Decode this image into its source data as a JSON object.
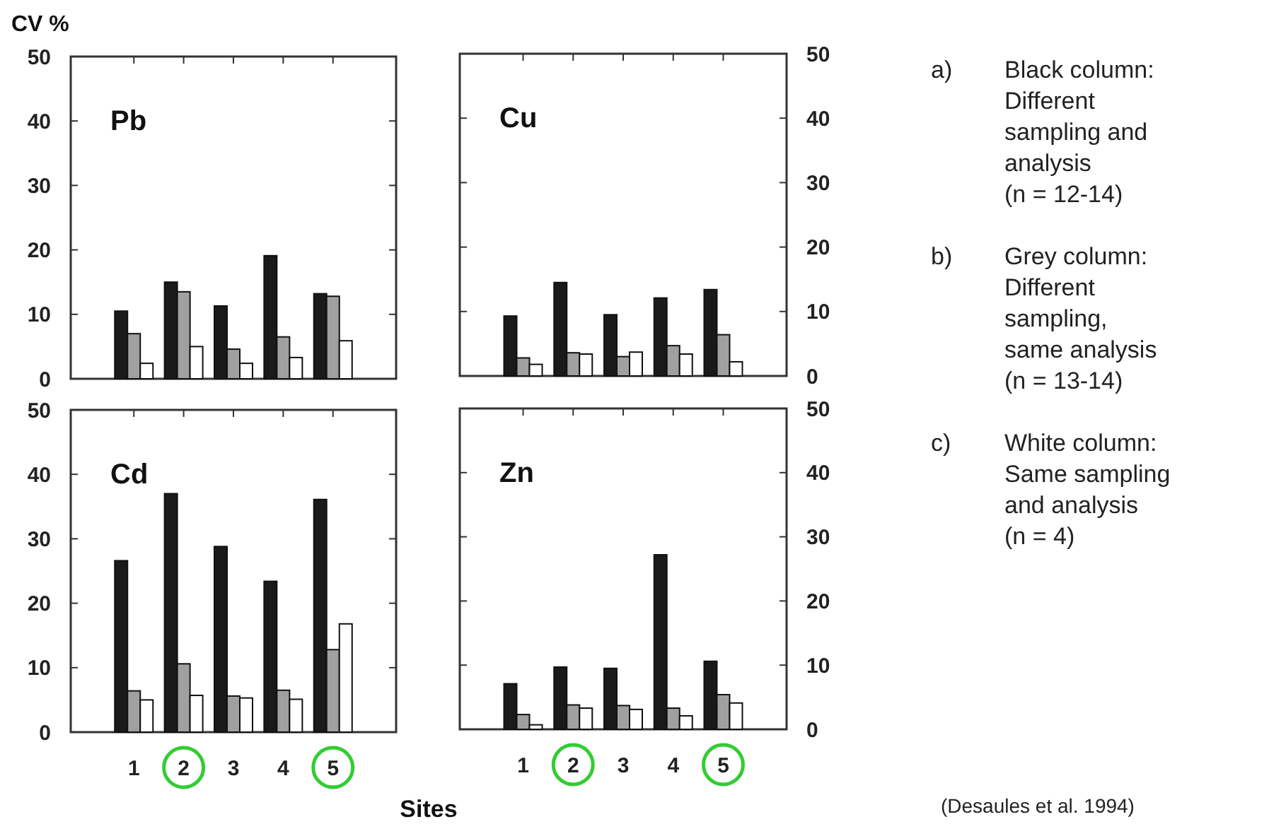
{
  "chart_data": [
    {
      "type": "bar",
      "title": "Pb",
      "ylabel": "CV %",
      "categories": [
        "1",
        "2",
        "3",
        "4",
        "5"
      ],
      "ylim": [
        0,
        50
      ],
      "yticks": [
        0,
        10,
        20,
        30,
        40,
        50
      ],
      "tick_labels": "y",
      "series": [
        {
          "color": "#1a1a1a",
          "values": [
            10.5,
            15.0,
            11.3,
            19.1,
            13.2
          ]
        },
        {
          "color": "#a0a0a0",
          "values": [
            7.0,
            13.5,
            4.6,
            6.5,
            12.8
          ]
        },
        {
          "color": "#ffffff",
          "values": [
            2.4,
            5.0,
            2.4,
            3.3,
            5.9
          ]
        }
      ]
    },
    {
      "type": "bar",
      "title": "Cu",
      "categories": [
        "1",
        "2",
        "3",
        "4",
        "5"
      ],
      "y2lim": [
        0,
        50
      ],
      "y2ticks": [
        0,
        10,
        20,
        30,
        40,
        50
      ],
      "tick_labels": "y",
      "series": [
        {
          "color": "#1a1a1a",
          "axis": "y2",
          "values": [
            9.3,
            14.5,
            9.5,
            12.1,
            13.4
          ]
        },
        {
          "color": "#a0a0a0",
          "axis": "y2",
          "values": [
            2.8,
            3.6,
            3.0,
            4.7,
            6.4
          ]
        },
        {
          "color": "#ffffff",
          "axis": "y2",
          "values": [
            1.8,
            3.4,
            3.7,
            3.4,
            2.2
          ]
        }
      ]
    },
    {
      "type": "bar",
      "title": "Cd",
      "xlabel": "Sites",
      "categories": [
        "1",
        "2",
        "3",
        "4",
        "5"
      ],
      "ylim": [
        0,
        50
      ],
      "yticks": [
        0,
        10,
        20,
        30,
        40,
        50
      ],
      "series": [
        {
          "color": "#1a1a1a",
          "values": [
            26.6,
            37.0,
            28.8,
            23.4,
            36.1
          ]
        },
        {
          "color": "#a0a0a0",
          "values": [
            6.4,
            10.6,
            5.6,
            6.5,
            12.8
          ]
        },
        {
          "color": "#ffffff",
          "values": [
            5.0,
            5.7,
            5.3,
            5.1,
            16.8
          ]
        }
      ]
    },
    {
      "type": "bar",
      "title": "Zn",
      "categories": [
        "1",
        "2",
        "3",
        "4",
        "5"
      ],
      "y2lim": [
        0,
        50
      ],
      "y2ticks": [
        0,
        10,
        20,
        30,
        40,
        50
      ],
      "series": [
        {
          "color": "#1a1a1a",
          "axis": "y2",
          "values": [
            7.1,
            9.7,
            9.5,
            27.2,
            10.6
          ]
        },
        {
          "color": "#a0a0a0",
          "axis": "y2",
          "values": [
            2.3,
            3.8,
            3.7,
            3.3,
            5.4
          ]
        },
        {
          "color": "#ffffff",
          "axis": "y2",
          "values": [
            0.7,
            3.3,
            3.1,
            2.1,
            4.1
          ]
        }
      ]
    },
    {
      "type": "other",
      "annotations": [
        "a) Black column: Different sampling and analysis (n = 12-14)",
        "b) Grey column: Different sampling, same analysis (n = 13-14)",
        "c) White column: Same sampling and analysis (n = 4)",
        "(Desaules et al. 1994)"
      ]
    }
  ]
}
